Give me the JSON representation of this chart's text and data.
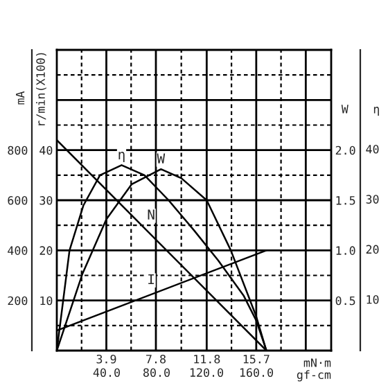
{
  "chart_data": {
    "type": "line",
    "xlabel": "mN·m",
    "x2label": "gf-cm",
    "ylabel": "r/min(X100)",
    "y2label": "W",
    "y3label": "mA",
    "annotations": [
      "η",
      "40",
      "30",
      "20",
      "10"
    ],
    "xlim": [
      0,
      21.6
    ],
    "xticks": [
      3.9,
      7.8,
      11.8,
      15.7,
      {
        "value": 19.6,
        "label": null
      }
    ],
    "x2lim": [
      0,
      220
    ],
    "x2ticks": [
      {
        "value": 40,
        "label": "40.0"
      },
      {
        "value": 80,
        "label": "80.0"
      },
      {
        "value": 120,
        "label": "120.0"
      },
      {
        "value": 160,
        "label": "160.0"
      }
    ],
    "ylim": [
      0,
      60
    ],
    "yticks": [
      10,
      20,
      30,
      40,
      {
        "value": 50,
        "label": null
      }
    ],
    "y2lim": [
      0,
      3.0
    ],
    "y2ticks": [
      0.5,
      {
        "value": 1.0,
        "label": "1.0"
      },
      1.5,
      {
        "value": 2.0,
        "label": "2.0"
      }
    ],
    "y3lim": [
      0,
      1200
    ],
    "y3ticks": [
      200,
      400,
      600,
      800
    ],
    "grid": true,
    "marker": "none",
    "line_style": "solid",
    "series": [
      {
        "name": "N",
        "color": "#000000",
        "x": [
          0,
          16.5
        ],
        "values": [
          42,
          0
        ]
      },
      {
        "name": "I",
        "color": "#000000",
        "axis": "y3",
        "x": [
          0,
          16.5
        ],
        "values": [
          80,
          400
        ]
      },
      {
        "name": "η",
        "color": "#000000",
        "x": [
          0,
          1,
          2.1,
          3.4,
          5.1,
          6.9,
          8.8,
          10.8,
          12.7,
          14.7,
          15.7,
          16.5
        ],
        "values": [
          0,
          20,
          29,
          35,
          37,
          35,
          30,
          24,
          18,
          11,
          6,
          0
        ]
      },
      {
        "name": "W",
        "color": "#000000",
        "axis": "y2",
        "x": [
          0,
          2,
          3.9,
          5.9,
          8.2,
          9.8,
          11.8,
          13.7,
          15.7,
          16.5
        ],
        "values": [
          0,
          0.76,
          1.31,
          1.66,
          1.81,
          1.72,
          1.5,
          1.0,
          0.34,
          0
        ]
      }
    ]
  }
}
